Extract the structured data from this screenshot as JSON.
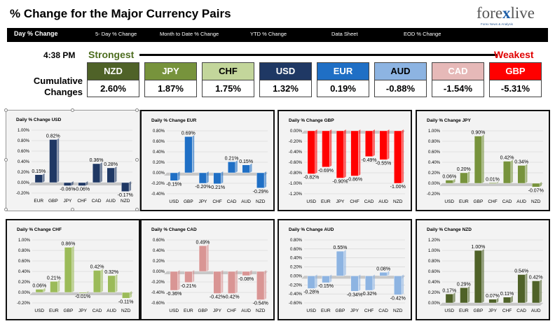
{
  "header": {
    "title": "% Change for the Major Currency Pairs",
    "logo_text_a": "fore",
    "logo_text_x": "x",
    "logo_text_b": "live",
    "logo_tagline": "Forex News & Analysis"
  },
  "nav": [
    {
      "label": "Day % Change",
      "active": true
    },
    {
      "label": "5- Day % Change",
      "active": false
    },
    {
      "label": "Month to Date % Change",
      "active": false
    },
    {
      "label": "YTD % Change",
      "active": false
    },
    {
      "label": "Data Sheet",
      "active": false
    },
    {
      "label": "EOD % Change",
      "active": false
    }
  ],
  "summary": {
    "time": "4:38 PM",
    "strongest_label": "Strongest",
    "weakest_label": "Weakest",
    "cumulative_label_1": "Cumulative",
    "cumulative_label_2": "Changes",
    "currencies": [
      {
        "code": "NZD",
        "value": "2.60%",
        "color": "#4f6228"
      },
      {
        "code": "JPY",
        "value": "1.87%",
        "color": "#77933c"
      },
      {
        "code": "CHF",
        "value": "1.75%",
        "color": "#c3d69b",
        "text": "#000000"
      },
      {
        "code": "USD",
        "value": "1.32%",
        "color": "#1f3864"
      },
      {
        "code": "EUR",
        "value": "0.19%",
        "color": "#1f6fc5"
      },
      {
        "code": "AUD",
        "value": "-0.88%",
        "color": "#8db4e2",
        "text": "#000000"
      },
      {
        "code": "CAD",
        "value": "-1.54%",
        "color": "#e6b9b8"
      },
      {
        "code": "GBP",
        "value": "-5.31%",
        "color": "#ff0000"
      }
    ]
  },
  "chart_data": [
    {
      "type": "bar",
      "title": "Daily % Change USD",
      "categories": [
        "EUR",
        "GBP",
        "JPY",
        "CHF",
        "CAD",
        "AUD",
        "NZD"
      ],
      "values": [
        0.15,
        0.82,
        -0.06,
        -0.06,
        0.36,
        0.28,
        -0.17
      ],
      "labels": [
        "0.15%",
        "0.82%",
        "-0.06%",
        "-0.06%",
        "0.36%",
        "0.28%",
        "-0.17%"
      ],
      "ylim": [
        -0.2,
        1.0
      ],
      "ticks": [
        "1.00%",
        "0.80%",
        "0.60%",
        "0.40%",
        "0.20%",
        "0.00%",
        "-0.20%"
      ],
      "color": "#1f3864",
      "selected": true
    },
    {
      "type": "bar",
      "title": "Daily % Change EUR",
      "categories": [
        "USD",
        "GBP",
        "JPY",
        "CHF",
        "CAD",
        "AUD",
        "NZD"
      ],
      "values": [
        -0.15,
        0.69,
        -0.2,
        -0.21,
        0.21,
        0.15,
        -0.29
      ],
      "labels": [
        "-0.15%",
        "0.69%",
        "-0.20%",
        "-0.21%",
        "0.21%",
        "0.15%",
        "-0.29%"
      ],
      "ylim": [
        -0.4,
        0.8
      ],
      "ticks": [
        "0.80%",
        "0.60%",
        "0.40%",
        "0.20%",
        "0.00%",
        "-0.20%",
        "-0.40%"
      ],
      "color": "#1f6fc5"
    },
    {
      "type": "bar",
      "title": "Daily % Change GBP",
      "categories": [
        "USD",
        "EUR",
        "JPY",
        "CHF",
        "CAD",
        "AUD",
        "NZD"
      ],
      "values": [
        -0.82,
        -0.69,
        -0.9,
        -0.86,
        -0.49,
        -0.55,
        -1.0
      ],
      "labels": [
        "-0.82%",
        "-0.69%",
        "-0.90%",
        "-0.86%",
        "-0.49%",
        "-0.55%",
        "-1.00%"
      ],
      "ylim": [
        -1.2,
        0.0
      ],
      "ticks": [
        "0.00%",
        "-0.20%",
        "-0.40%",
        "-0.60%",
        "-0.80%",
        "-1.00%",
        "-1.20%"
      ],
      "color": "#ff0000"
    },
    {
      "type": "bar",
      "title": "Daily % Change JPY",
      "categories": [
        "USD",
        "EUR",
        "GBP",
        "CHF",
        "CAD",
        "AUD",
        "NZD"
      ],
      "values": [
        0.06,
        0.2,
        0.9,
        0.01,
        0.42,
        0.34,
        -0.07
      ],
      "labels": [
        "0.06%",
        "0.20%",
        "0.90%",
        "0.01%",
        "0.42%",
        "0.34%",
        "-0.07%"
      ],
      "ylim": [
        -0.2,
        1.0
      ],
      "ticks": [
        "1.00%",
        "0.80%",
        "0.60%",
        "0.40%",
        "0.20%",
        "0.00%",
        "-0.20%"
      ],
      "color": "#77933c"
    },
    {
      "type": "bar",
      "title": "Daily % Change CHF",
      "categories": [
        "USD",
        "EUR",
        "GBP",
        "JPY",
        "CAD",
        "AUD",
        "NZD"
      ],
      "values": [
        0.06,
        0.21,
        0.86,
        -0.01,
        0.42,
        0.32,
        -0.11
      ],
      "labels": [
        "0.06%",
        "0.21%",
        "0.86%",
        "-0.01%",
        "0.42%",
        "0.32%",
        "-0.11%"
      ],
      "ylim": [
        -0.2,
        1.0
      ],
      "ticks": [
        "1.00%",
        "0.80%",
        "0.60%",
        "0.40%",
        "0.20%",
        "0.00%",
        "-0.20%"
      ],
      "color": "#9bbb59"
    },
    {
      "type": "bar",
      "title": "Daily % Change CAD",
      "categories": [
        "USD",
        "EUR",
        "GBP",
        "JPY",
        "CHF",
        "AUD",
        "NZD"
      ],
      "values": [
        -0.36,
        -0.21,
        0.49,
        -0.42,
        -0.42,
        -0.08,
        -0.54
      ],
      "labels": [
        "-0.36%",
        "-0.21%",
        "0.49%",
        "-0.42%",
        "-0.42%",
        "-0.08%",
        "-0.54%"
      ],
      "ylim": [
        -0.6,
        0.6
      ],
      "ticks": [
        "0.60%",
        "0.40%",
        "0.20%",
        "0.00%",
        "-0.20%",
        "-0.40%",
        "-0.60%"
      ],
      "color": "#d99594"
    },
    {
      "type": "bar",
      "title": "Daily % Change AUD",
      "categories": [
        "USD",
        "EUR",
        "GBP",
        "JPY",
        "CHF",
        "CAD",
        "NZD"
      ],
      "values": [
        -0.28,
        -0.15,
        0.55,
        -0.34,
        -0.32,
        0.08,
        -0.42
      ],
      "labels": [
        "-0.28%",
        "-0.15%",
        "0.55%",
        "-0.34%",
        "-0.32%",
        "0.08%",
        "-0.42%"
      ],
      "ylim": [
        -0.6,
        0.8
      ],
      "ticks": [
        "0.80%",
        "0.60%",
        "0.40%",
        "0.20%",
        "0.00%",
        "-0.20%",
        "-0.40%",
        "-0.60%"
      ],
      "color": "#8db4e2"
    },
    {
      "type": "bar",
      "title": "Daily % Change NZD",
      "categories": [
        "USD",
        "EUR",
        "GBP",
        "JPY",
        "CHF",
        "CAD",
        "AUD"
      ],
      "values": [
        0.17,
        0.29,
        1.0,
        0.07,
        0.11,
        0.54,
        0.42
      ],
      "labels": [
        "0.17%",
        "0.29%",
        "1.00%",
        "0.07%",
        "0.11%",
        "0.54%",
        "0.42%"
      ],
      "ylim": [
        0.0,
        1.2
      ],
      "ticks": [
        "1.20%",
        "1.00%",
        "0.80%",
        "0.60%",
        "0.40%",
        "0.20%",
        "0.00%"
      ],
      "color": "#4f6228"
    }
  ]
}
